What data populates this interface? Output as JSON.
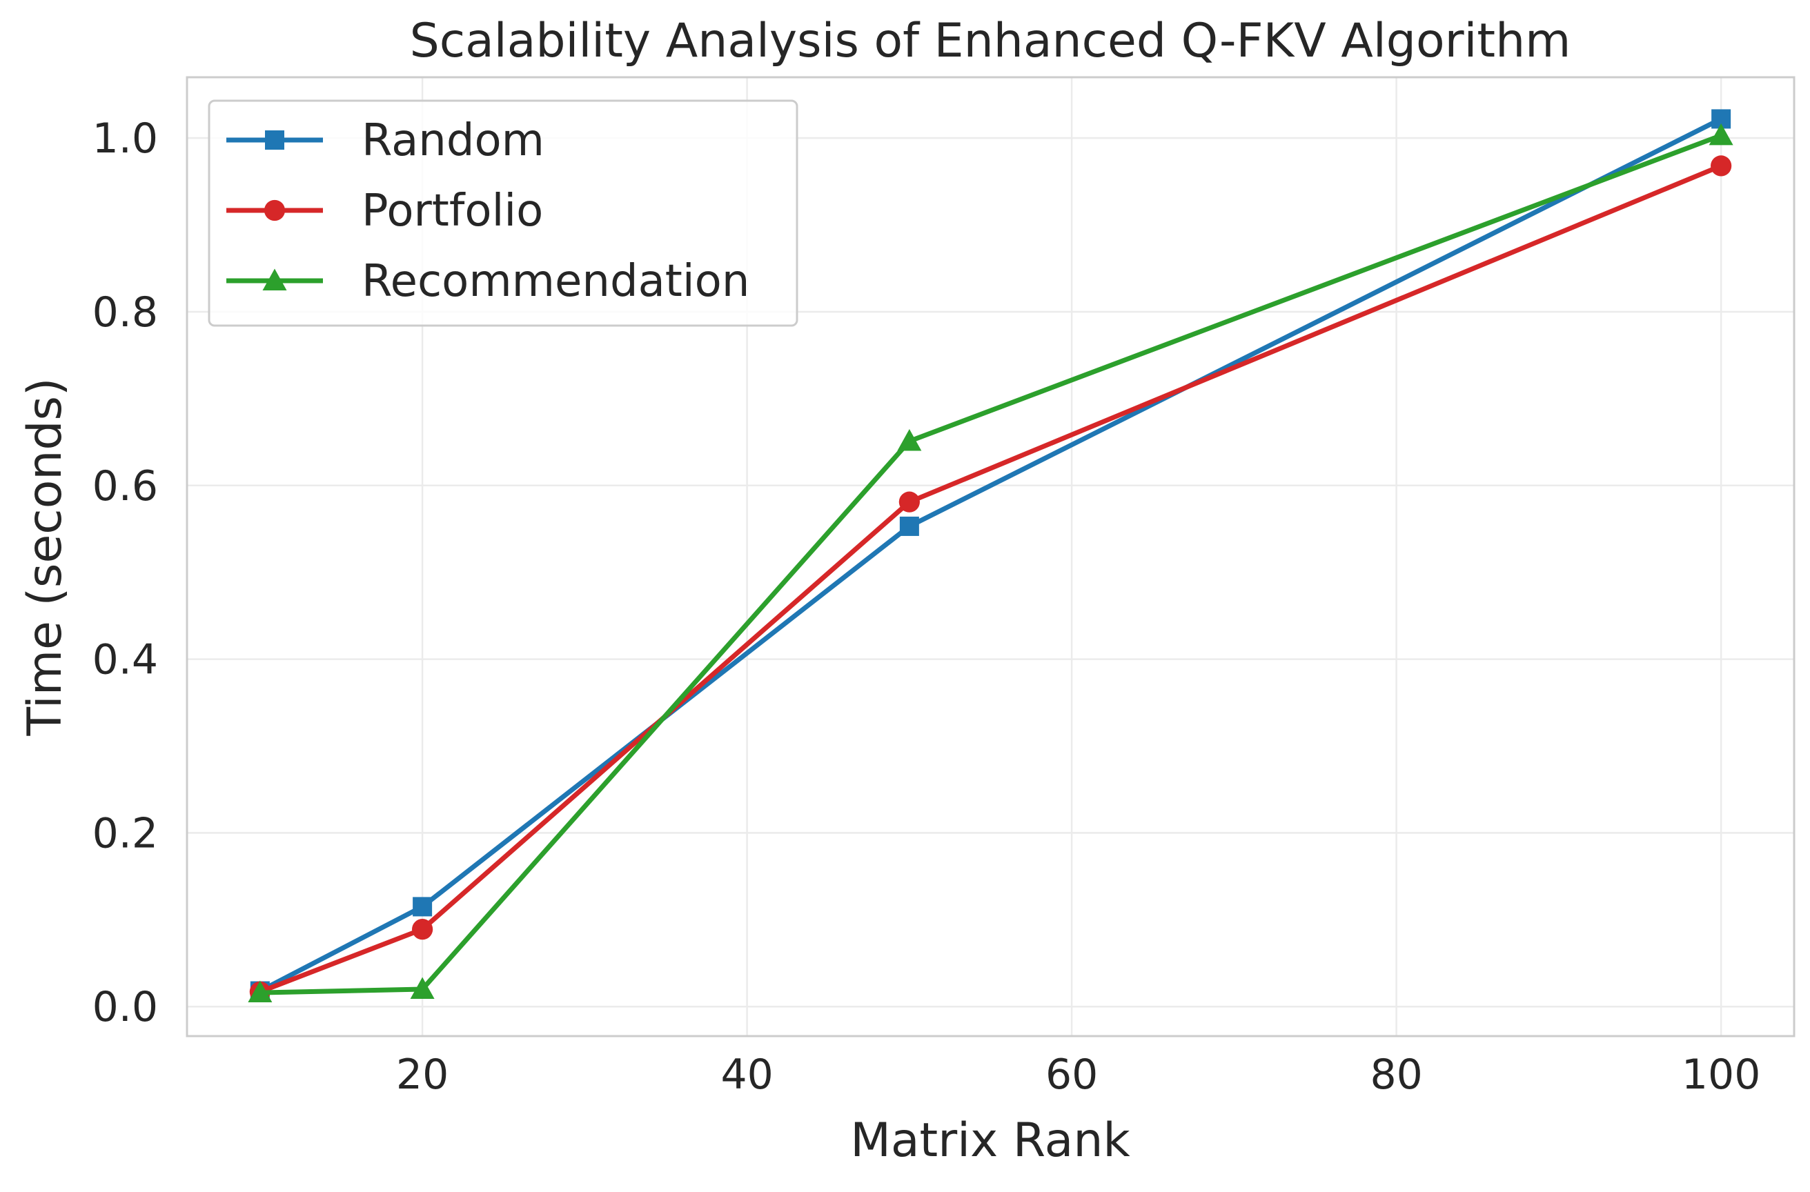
{
  "chart_data": {
    "type": "line",
    "title": "Scalability Analysis of Enhanced Q-FKV Algorithm",
    "xlabel": "Matrix Rank",
    "ylabel": "Time (seconds)",
    "x": [
      10,
      20,
      50,
      100
    ],
    "xlim": [
      5.5,
      104.5
    ],
    "ylim": [
      -0.034,
      1.07
    ],
    "xticks": [
      20,
      40,
      60,
      80,
      100
    ],
    "xtick_labels": [
      "20",
      "40",
      "60",
      "80",
      "100"
    ],
    "yticks": [
      0.0,
      0.2,
      0.4,
      0.6,
      0.8,
      1.0
    ],
    "ytick_labels": [
      "0.0",
      "0.2",
      "0.4",
      "0.6",
      "0.8",
      "1.0"
    ],
    "grid": true,
    "legend_position": "upper-left",
    "series": [
      {
        "name": "Random",
        "color": "#1f77b4",
        "marker": "square",
        "values": [
          0.018,
          0.115,
          0.553,
          1.022
        ]
      },
      {
        "name": "Portfolio",
        "color": "#d62728",
        "marker": "circle",
        "values": [
          0.017,
          0.089,
          0.581,
          0.968
        ]
      },
      {
        "name": "Recommendation",
        "color": "#2ca02c",
        "marker": "triangle",
        "values": [
          0.016,
          0.02,
          0.651,
          1.003
        ]
      }
    ]
  }
}
